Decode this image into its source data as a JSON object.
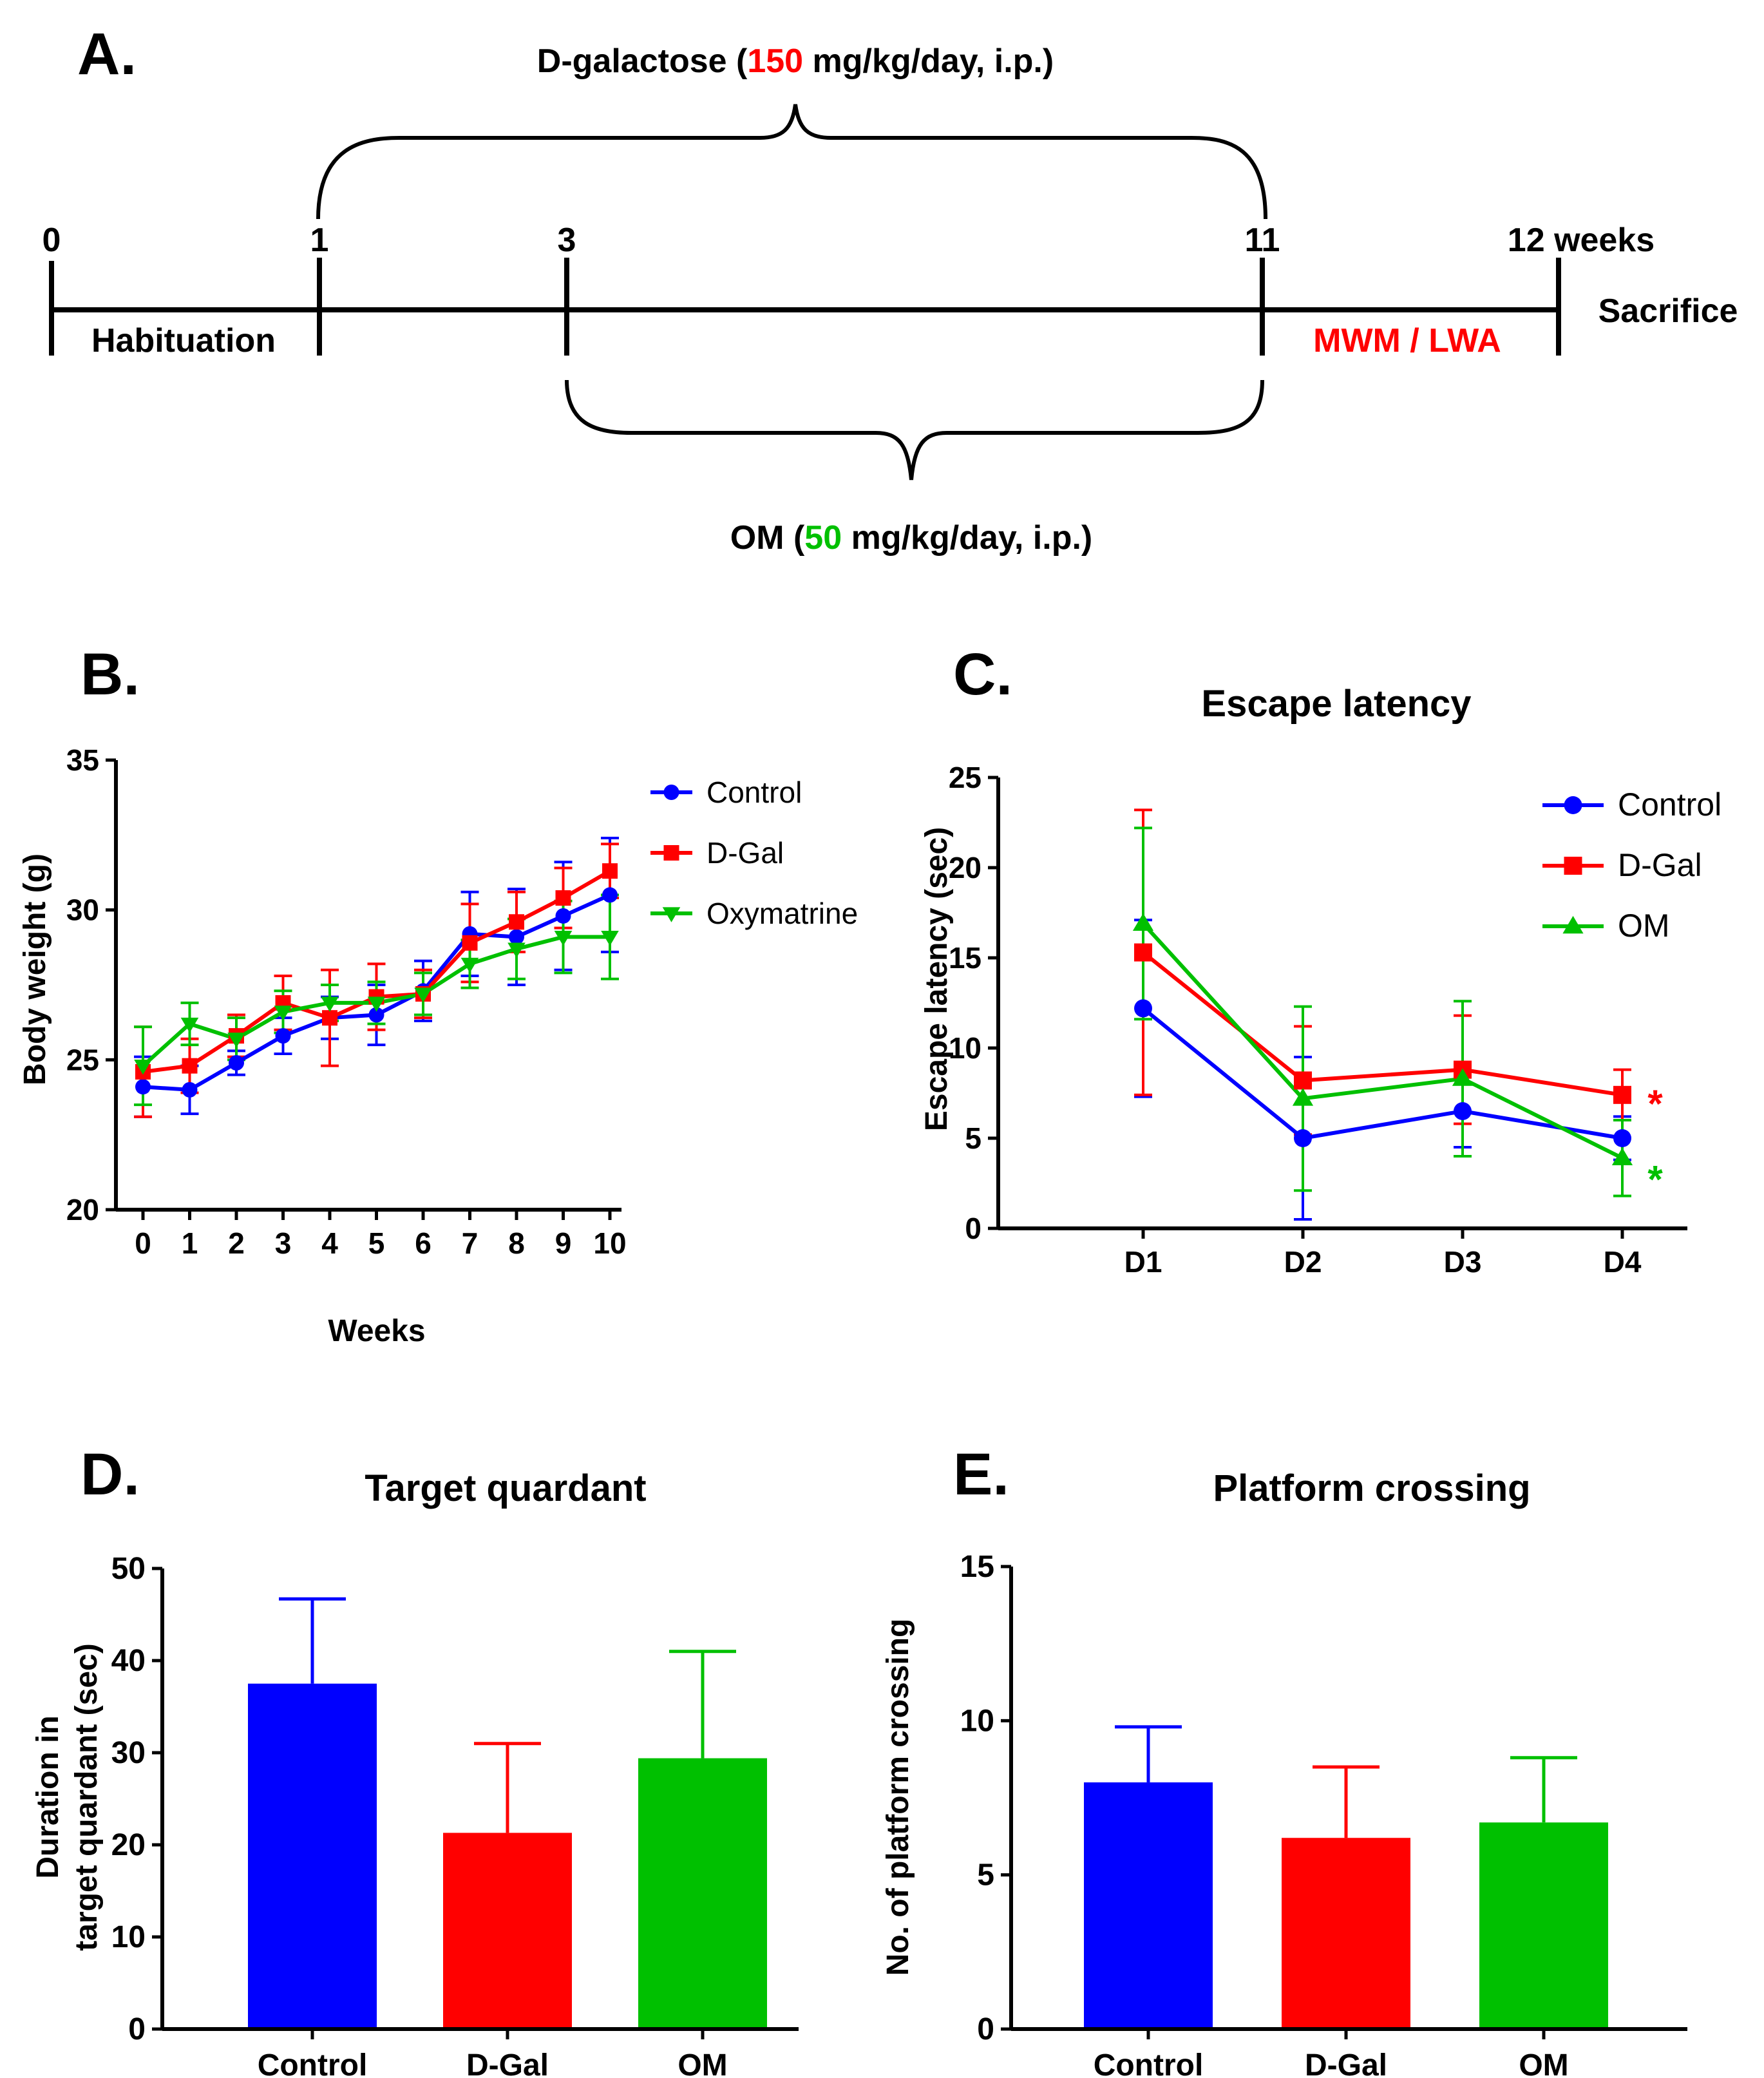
{
  "colors": {
    "blue": "#0000ff",
    "red": "#ff0000",
    "green": "#00c000",
    "black": "#000000"
  },
  "panel_a": {
    "label": "A.",
    "dgal_prefix": "D-galactose (",
    "dgal_dose": "150",
    "dgal_suffix": " mg/kg/day, i.p.)",
    "om_prefix": "OM (",
    "om_dose": "50",
    "om_suffix": " mg/kg/day, i.p.)",
    "ticks": [
      "0",
      "1",
      "3",
      "11",
      "12 weeks"
    ],
    "habituation": "Habituation",
    "tests": "MWM / LWA",
    "sacrifice": "Sacrifice"
  },
  "chart_data": [
    {
      "id": "B",
      "panel_label": "B.",
      "type": "line",
      "title": "",
      "xlabel": "Weeks",
      "ylabel": "Body weight (g)",
      "x": [
        0,
        1,
        2,
        3,
        4,
        5,
        6,
        7,
        8,
        9,
        10
      ],
      "xticks": [
        "0",
        "1",
        "2",
        "3",
        "4",
        "5",
        "6",
        "7",
        "8",
        "9",
        "10"
      ],
      "ylim": [
        20,
        35
      ],
      "yticks": [
        20,
        25,
        30,
        35
      ],
      "legend": "top-right",
      "series": [
        {
          "name": "Control",
          "color": "#0000ff",
          "marker": "circle",
          "values": [
            24.1,
            24.0,
            24.9,
            25.8,
            26.4,
            26.5,
            27.3,
            29.2,
            29.1,
            29.8,
            30.5
          ],
          "errors": [
            1.0,
            0.8,
            0.4,
            0.6,
            0.7,
            1.0,
            1.0,
            1.4,
            1.6,
            1.8,
            1.9
          ]
        },
        {
          "name": "D-Gal",
          "color": "#ff0000",
          "marker": "square",
          "values": [
            24.6,
            24.8,
            25.8,
            26.9,
            26.4,
            27.1,
            27.2,
            28.9,
            29.6,
            30.4,
            31.3
          ],
          "errors": [
            1.5,
            0.9,
            0.7,
            0.9,
            1.6,
            1.1,
            0.8,
            1.3,
            1.0,
            1.0,
            0.9
          ]
        },
        {
          "name": "Oxymatrine",
          "color": "#00c000",
          "marker": "triangle-down",
          "values": [
            24.8,
            26.2,
            25.7,
            26.6,
            26.9,
            26.9,
            27.2,
            28.2,
            28.7,
            29.1,
            29.1
          ],
          "errors": [
            1.3,
            0.7,
            0.7,
            0.7,
            0.6,
            0.7,
            0.7,
            0.8,
            1.0,
            1.2,
            1.4
          ]
        }
      ]
    },
    {
      "id": "C",
      "panel_label": "C.",
      "type": "line",
      "title": "Escape latency",
      "xlabel": "",
      "ylabel": "Escape latency (sec)",
      "categories": [
        "D1",
        "D2",
        "D3",
        "D4"
      ],
      "ylim": [
        0,
        25
      ],
      "yticks": [
        0,
        5,
        10,
        15,
        20,
        25
      ],
      "legend": "top-right",
      "series": [
        {
          "name": "Control",
          "color": "#0000ff",
          "marker": "circle",
          "values": [
            12.2,
            5.0,
            6.5,
            5.0
          ],
          "errors": [
            4.9,
            4.5,
            2.0,
            1.2
          ]
        },
        {
          "name": "D-Gal",
          "color": "#ff0000",
          "marker": "square",
          "values": [
            15.3,
            8.2,
            8.8,
            7.4
          ],
          "errors": [
            7.9,
            3.0,
            3.0,
            1.4
          ]
        },
        {
          "name": "OM",
          "color": "#00c000",
          "marker": "triangle-up",
          "values": [
            16.9,
            7.2,
            8.3,
            3.9
          ],
          "errors": [
            5.3,
            5.1,
            4.3,
            2.1
          ]
        }
      ],
      "annotations": [
        {
          "text": "*",
          "color": "#ff0000",
          "y": 7.4
        },
        {
          "text": "*",
          "color": "#00c000",
          "y": 3.2
        }
      ]
    },
    {
      "id": "D",
      "panel_label": "D.",
      "type": "bar",
      "title": "Target quardant",
      "xlabel": "",
      "ylabel_line1": "Duration in",
      "ylabel_line2": "target quardant (sec)",
      "categories": [
        "Control",
        "D-Gal",
        "OM"
      ],
      "values": [
        37.5,
        21.3,
        29.4
      ],
      "errors": [
        9.2,
        9.7,
        11.6
      ],
      "bar_colors": [
        "#0000ff",
        "#ff0000",
        "#00c000"
      ],
      "ylim": [
        0,
        50
      ],
      "yticks": [
        0,
        10,
        20,
        30,
        40,
        50
      ]
    },
    {
      "id": "E",
      "panel_label": "E.",
      "type": "bar",
      "title": "Platform crossing",
      "xlabel": "",
      "ylabel": "No. of platform crossing",
      "categories": [
        "Control",
        "D-Gal",
        "OM"
      ],
      "values": [
        8.0,
        6.2,
        6.7
      ],
      "errors": [
        1.8,
        2.3,
        2.1
      ],
      "bar_colors": [
        "#0000ff",
        "#ff0000",
        "#00c000"
      ],
      "ylim": [
        0,
        15
      ],
      "yticks": [
        0,
        5,
        10,
        15
      ]
    }
  ]
}
